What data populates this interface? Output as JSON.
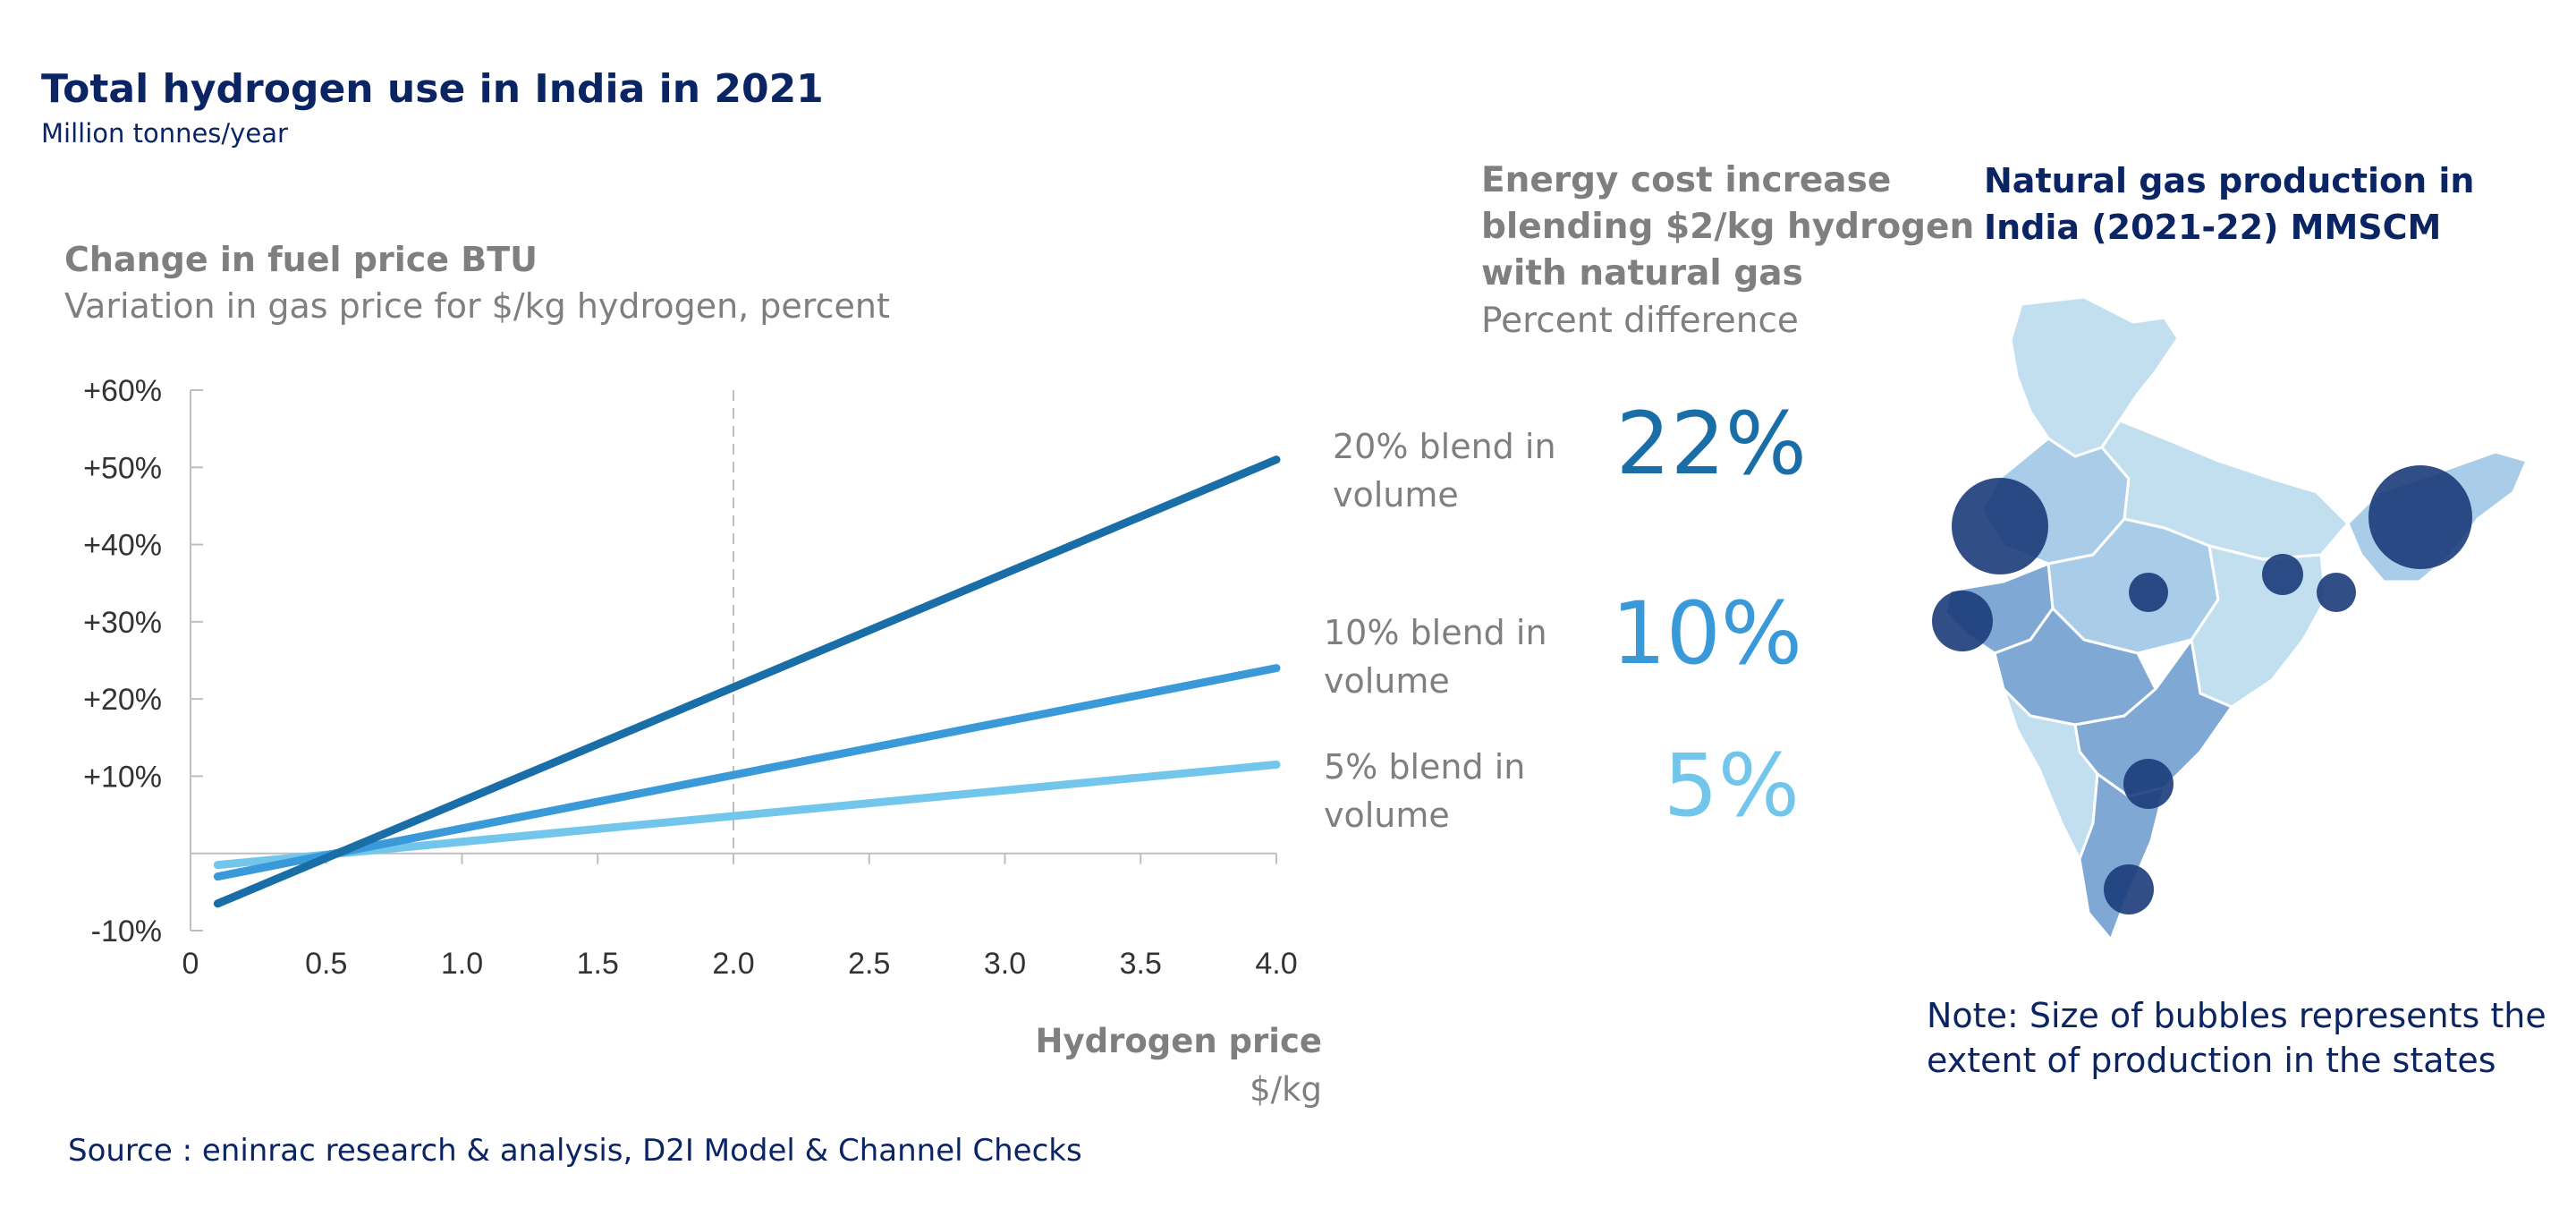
{
  "title": "Total hydrogen use in India in 2021",
  "subtitle": "Million tonnes/year",
  "chart_data": {
    "type": "line",
    "title": "Change in fuel price BTU",
    "subtitle": "Variation in gas price for $/kg hydrogen, percent",
    "xlabel": "Hydrogen price",
    "xunit": "$/kg",
    "xlim": [
      0,
      4.0
    ],
    "ylim": [
      -10,
      60
    ],
    "x_ticks": [
      "0",
      "0.5",
      "1.0",
      "1.5",
      "2.0",
      "2.5",
      "3.0",
      "3.5",
      "4.0"
    ],
    "y_ticks": [
      "-10%",
      "+10%",
      "+20%",
      "+30%",
      "+40%",
      "+50%",
      "+60%"
    ],
    "reference_line_x": 2.0,
    "grid": false,
    "series": [
      {
        "name": "20% blend in volume",
        "color": "#1a6ea8",
        "x": [
          0.1,
          4.0
        ],
        "y": [
          -6.5,
          51
        ]
      },
      {
        "name": "10% blend in volume",
        "color": "#3a9ad9",
        "x": [
          0.1,
          4.0
        ],
        "y": [
          -3,
          24
        ]
      },
      {
        "name": "5% blend in volume",
        "color": "#72c6ec",
        "x": [
          0.1,
          4.0
        ],
        "y": [
          -1.5,
          11.5
        ]
      }
    ]
  },
  "energy_cost": {
    "title": "Energy cost increase blending $2/kg hydrogen with natural gas",
    "subtitle": "Percent difference",
    "values": [
      {
        "value": "22%",
        "color": "#1a6ea8"
      },
      {
        "value": "10%",
        "color": "#3a9ad9"
      },
      {
        "value": "5%",
        "color": "#72c6ec"
      }
    ]
  },
  "gas_map": {
    "title": "Natural gas production in India (2021-22) MMSCM",
    "note": "Note: Size of bubbles represents the extent of production in the states",
    "bubble_color": "#1b3b7a"
  },
  "source": "Source : eninrac research & analysis, D2I Model & Channel Checks"
}
